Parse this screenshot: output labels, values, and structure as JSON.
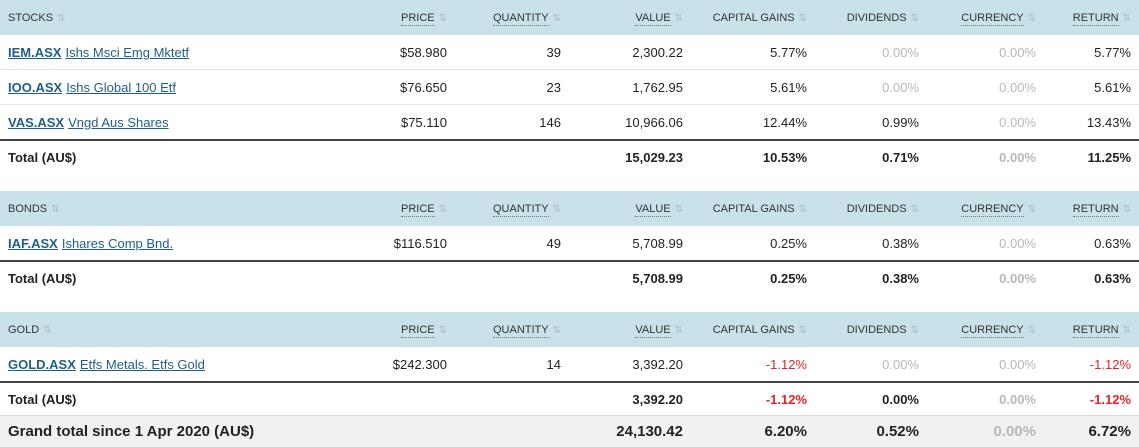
{
  "columns": {
    "price": "PRICE",
    "quantity": "QUANTITY",
    "value": "VALUE",
    "capital_gains": "CAPITAL GAINS",
    "dividends": "DIVIDENDS",
    "currency": "CURRENCY",
    "return": "RETURN"
  },
  "sections": [
    {
      "title": "STOCKS",
      "rows": [
        {
          "ticker": "IEM.ASX",
          "name": "Ishs Msci Emg Mktetf",
          "price": "$58.980",
          "quantity": "39",
          "value": "2,300.22",
          "capital_gains": "5.77%",
          "dividends": "0.00%",
          "currency": "0.00%",
          "return": "5.77%"
        },
        {
          "ticker": "IOO.ASX",
          "name": "Ishs Global 100 Etf",
          "price": "$76.650",
          "quantity": "23",
          "value": "1,762.95",
          "capital_gains": "5.61%",
          "dividends": "0.00%",
          "currency": "0.00%",
          "return": "5.61%"
        },
        {
          "ticker": "VAS.ASX",
          "name": "Vngd Aus Shares",
          "price": "$75.110",
          "quantity": "146",
          "value": "10,966.06",
          "capital_gains": "12.44%",
          "dividends": "0.99%",
          "currency": "0.00%",
          "return": "13.43%"
        }
      ],
      "total": {
        "label": "Total (AU$)",
        "value": "15,029.23",
        "capital_gains": "10.53%",
        "dividends": "0.71%",
        "currency": "0.00%",
        "return": "11.25%"
      }
    },
    {
      "title": "BONDS",
      "rows": [
        {
          "ticker": "IAF.ASX",
          "name": "Ishares Comp Bnd.",
          "price": "$116.510",
          "quantity": "49",
          "value": "5,708.99",
          "capital_gains": "0.25%",
          "dividends": "0.38%",
          "currency": "0.00%",
          "return": "0.63%"
        }
      ],
      "total": {
        "label": "Total (AU$)",
        "value": "5,708.99",
        "capital_gains": "0.25%",
        "dividends": "0.38%",
        "currency": "0.00%",
        "return": "0.63%"
      }
    },
    {
      "title": "GOLD",
      "rows": [
        {
          "ticker": "GOLD.ASX",
          "name": "Etfs Metals. Etfs Gold",
          "price": "$242.300",
          "quantity": "14",
          "value": "3,392.20",
          "capital_gains": "-1.12%",
          "dividends": "0.00%",
          "currency": "0.00%",
          "return": "-1.12%"
        }
      ],
      "total": {
        "label": "Total (AU$)",
        "value": "3,392.20",
        "capital_gains": "-1.12%",
        "dividends": "0.00%",
        "currency": "0.00%",
        "return": "-1.12%"
      }
    }
  ],
  "grand_total": {
    "label": "Grand total since 1 Apr 2020 (AU$)",
    "value": "24,130.42",
    "capital_gains": "6.20%",
    "dividends": "0.52%",
    "currency": "0.00%",
    "return": "6.72%"
  },
  "colors": {
    "header_bg": "#c9e1e8",
    "link": "#1f5f86",
    "negative": "#e0242b",
    "muted": "#b8b8b8"
  },
  "icons": {
    "sort": "sort-arrows-icon"
  }
}
